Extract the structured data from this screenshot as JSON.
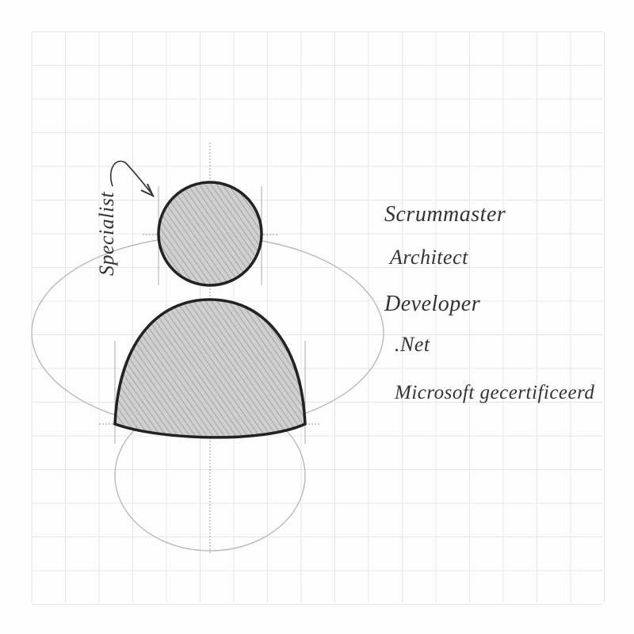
{
  "sketch": {
    "side_label": "Specialist",
    "roles": [
      "Scrummaster",
      "Architect",
      "Developer",
      ".Net",
      "Microsoft gecertificeerd"
    ],
    "colors": {
      "grid": "#e6e6e6",
      "pencil": "#2a2a2a",
      "shading": "#9a9a9a",
      "guide": "#b5b5b5"
    }
  }
}
